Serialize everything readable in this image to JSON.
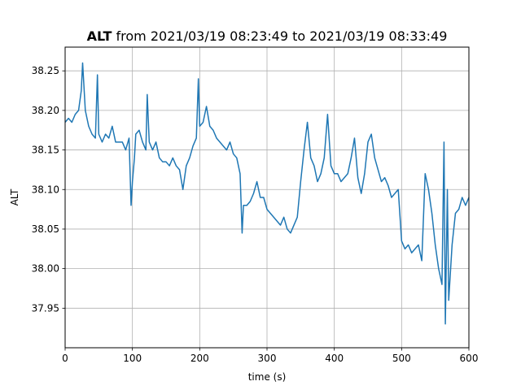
{
  "chart_data": {
    "type": "line",
    "title_bold": "ALT",
    "title_rest": " from 2021/03/19 08:23:49 to 2021/03/19 08:33:49",
    "xlabel": "time (s)",
    "ylabel": "ALT",
    "xlim": [
      0,
      600
    ],
    "ylim": [
      37.9,
      38.28
    ],
    "xticks": [
      0,
      100,
      200,
      300,
      400,
      500,
      600
    ],
    "yticks": [
      37.95,
      38.0,
      38.05,
      38.1,
      38.15,
      38.2,
      38.25
    ],
    "ytick_labels": [
      "37.95",
      "38.00",
      "38.05",
      "38.10",
      "38.15",
      "38.20",
      "38.25"
    ],
    "grid": true,
    "line_color": "#1f77b4",
    "series": [
      {
        "x": [
          0,
          5,
          10,
          15,
          20,
          24,
          26,
          30,
          35,
          40,
          45,
          48,
          50,
          55,
          60,
          65,
          70,
          75,
          80,
          85,
          90,
          95,
          98,
          100,
          103,
          105,
          110,
          115,
          120,
          122,
          125,
          130,
          135,
          140,
          145,
          150,
          155,
          160,
          165,
          170,
          175,
          180,
          185,
          190,
          195,
          198,
          200,
          205,
          210,
          215,
          220,
          225,
          230,
          235,
          240,
          245,
          250,
          255,
          260,
          263,
          265,
          270,
          275,
          280,
          285,
          290,
          295,
          300,
          305,
          310,
          315,
          320,
          325,
          330,
          335,
          340,
          345,
          350,
          355,
          360,
          365,
          370,
          375,
          380,
          385,
          390,
          395,
          400,
          405,
          410,
          415,
          420,
          425,
          430,
          435,
          440,
          445,
          450,
          455,
          460,
          465,
          470,
          475,
          480,
          485,
          490,
          495,
          500,
          505,
          510,
          515,
          520,
          525,
          530,
          535,
          540,
          545,
          550,
          555,
          560,
          563,
          565,
          568,
          570,
          575,
          580,
          585,
          590,
          595,
          600
        ],
        "y": [
          38.185,
          38.19,
          38.185,
          38.195,
          38.2,
          38.225,
          38.26,
          38.2,
          38.18,
          38.17,
          38.165,
          38.245,
          38.17,
          38.16,
          38.17,
          38.165,
          38.18,
          38.16,
          38.16,
          38.16,
          38.15,
          38.165,
          38.08,
          38.11,
          38.14,
          38.17,
          38.175,
          38.16,
          38.15,
          38.22,
          38.16,
          38.15,
          38.16,
          38.14,
          38.135,
          38.135,
          38.13,
          38.14,
          38.13,
          38.125,
          38.1,
          38.13,
          38.14,
          38.155,
          38.165,
          38.24,
          38.18,
          38.185,
          38.205,
          38.18,
          38.175,
          38.165,
          38.16,
          38.155,
          38.15,
          38.16,
          38.145,
          38.14,
          38.12,
          38.045,
          38.08,
          38.08,
          38.085,
          38.095,
          38.11,
          38.09,
          38.09,
          38.075,
          38.07,
          38.065,
          38.06,
          38.055,
          38.065,
          38.05,
          38.045,
          38.055,
          38.065,
          38.11,
          38.15,
          38.185,
          38.14,
          38.13,
          38.11,
          38.12,
          38.14,
          38.195,
          38.13,
          38.12,
          38.12,
          38.11,
          38.115,
          38.12,
          38.14,
          38.165,
          38.115,
          38.095,
          38.12,
          38.16,
          38.17,
          38.14,
          38.125,
          38.11,
          38.115,
          38.105,
          38.09,
          38.095,
          38.1,
          38.035,
          38.025,
          38.03,
          38.02,
          38.025,
          38.03,
          38.01,
          38.12,
          38.1,
          38.07,
          38.03,
          38.0,
          37.98,
          38.16,
          37.93,
          38.1,
          37.96,
          38.03,
          38.07,
          38.075,
          38.09,
          38.08,
          38.09
        ]
      }
    ]
  }
}
